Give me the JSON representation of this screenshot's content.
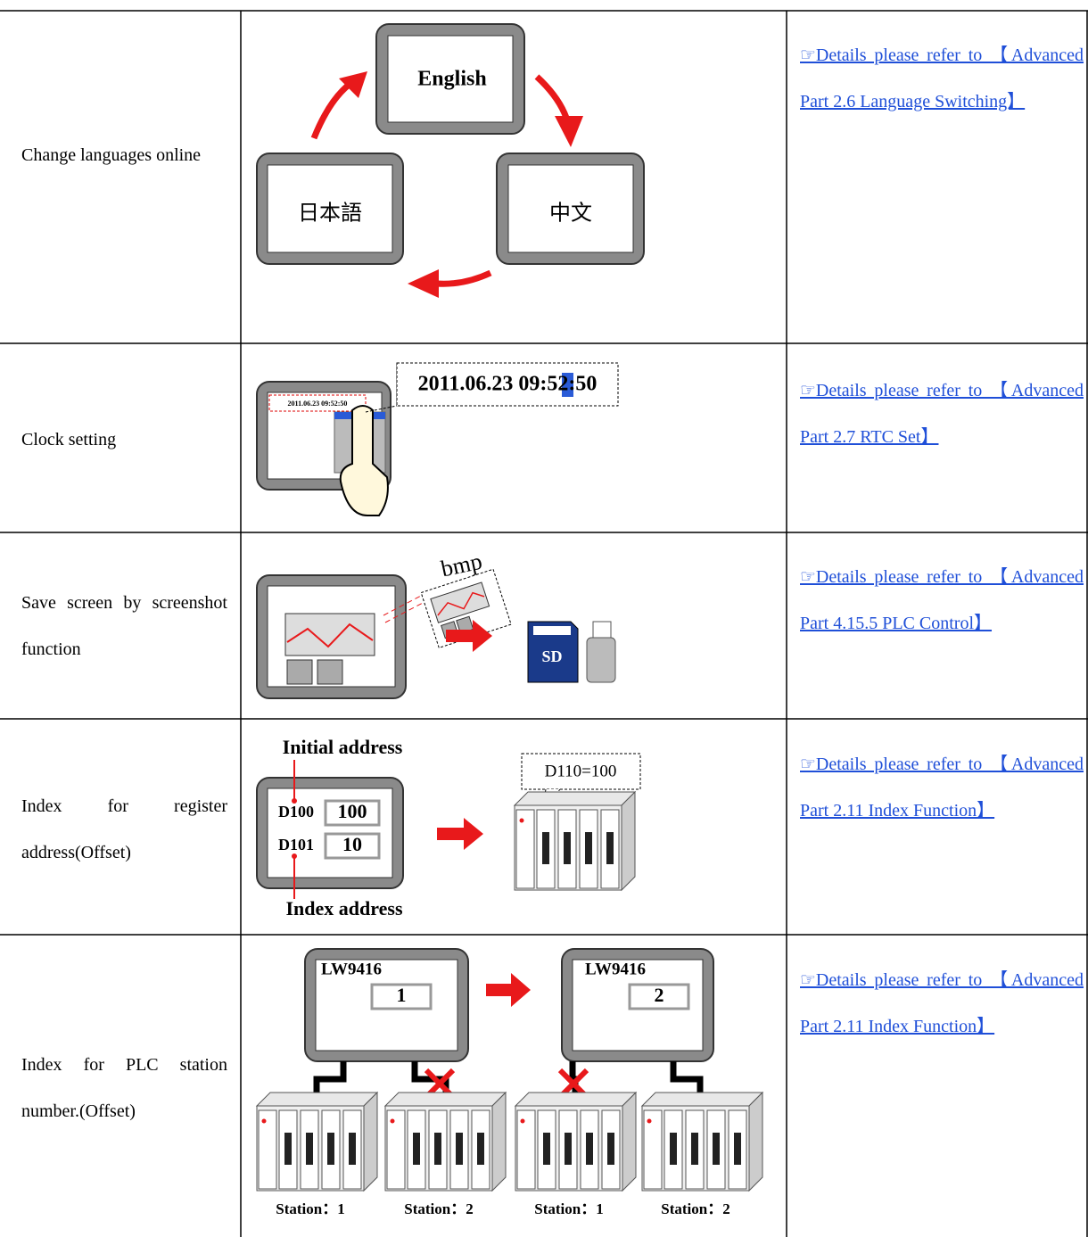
{
  "rows": [
    {
      "feature": "Change languages online",
      "illustration": {
        "english": "English",
        "chinese": "中文",
        "japanese": "日本語"
      },
      "link": "☞Details please refer to 【Advanced Part 2.6 Language Switching】"
    },
    {
      "feature": "Clock setting",
      "illustration": {
        "time": "2011.06.23 09:52:50",
        "screen_time": "2011.06.23 09:52:50"
      },
      "link": "☞Details please refer to 【Advanced Part 2.7 RTC Set】"
    },
    {
      "feature": "Save screen by screenshot function",
      "illustration": {
        "file": "bmp",
        "card": "SD"
      },
      "link": "☞Details please refer to 【Advanced Part 4.15.5 PLC Control】"
    },
    {
      "feature": "Index for register address(Offset)",
      "illustration": {
        "initial": "Initial address",
        "reg1": "D100",
        "val1": "100",
        "reg2": "D101",
        "val2": "10",
        "index": "Index address",
        "result": "D110=100"
      },
      "link": "☞Details please refer to 【Advanced Part 2.11 Index Function】"
    },
    {
      "feature": "Index for PLC station number.(Offset)",
      "illustration": {
        "reg_a": "LW9416",
        "val_a": "1",
        "reg_b": "LW9416",
        "val_b": "2",
        "stations": [
          "Station：1",
          "Station：2",
          "Station：1",
          "Station：2"
        ]
      },
      "link": "☞Details please refer to 【Advanced Part 2.11 Index Function】"
    }
  ]
}
